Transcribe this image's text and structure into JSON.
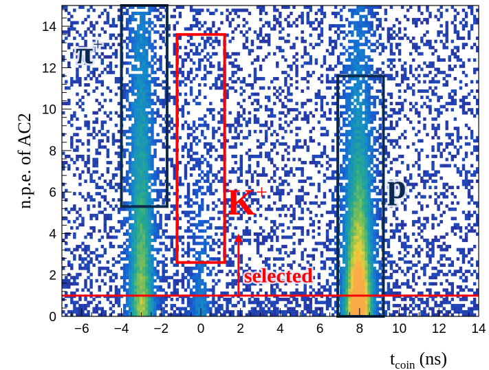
{
  "chart_data": {
    "type": "heatmap",
    "xlabel": {
      "main": "t",
      "sub": "coin",
      "unit": "(ns)"
    },
    "ylabel": "n.p.e. of AC2",
    "xlim": [
      -7,
      14
    ],
    "ylim": [
      0,
      15
    ],
    "xticks": [
      -6,
      -4,
      -2,
      0,
      2,
      4,
      6,
      8,
      10,
      12,
      14
    ],
    "xtick_labels": [
      "−6",
      "−4",
      "−2",
      "0",
      "2",
      "4",
      "6",
      "8",
      "10",
      "12",
      "14"
    ],
    "yticks": [
      0,
      2,
      4,
      6,
      8,
      10,
      12,
      14
    ],
    "ytick_labels": [
      "0",
      "2",
      "4",
      "6",
      "8",
      "10",
      "12",
      "14"
    ],
    "grid": false,
    "legend": "none",
    "colormap": "viridis-like (blue to yellow)",
    "peaks": [
      {
        "center_x": -3.0,
        "width_x": 0.45,
        "intensity": 1.0,
        "y_decay": 0.07
      },
      {
        "center_x": 0.0,
        "width_x": 0.35,
        "intensity": 0.38,
        "y_decay": 0.2
      },
      {
        "center_x": 7.95,
        "width_x": 0.5,
        "intensity": 1.6,
        "y_decay": 0.13
      }
    ],
    "cut_lines": [
      {
        "name": "selected",
        "y": 1.0,
        "color": "#ff0000"
      }
    ],
    "regions": [
      {
        "label": "π",
        "sup": "+",
        "x0": -4.0,
        "x1": -1.7,
        "y0": 5.3,
        "y1": 15.0,
        "color": "#0a2a50"
      },
      {
        "label": "K",
        "sup": "+",
        "x0": -1.2,
        "x1": 1.2,
        "y0": 2.6,
        "y1": 13.6,
        "color": "#ff0000"
      },
      {
        "label": "p",
        "sup": "",
        "x0": 6.9,
        "x1": 9.2,
        "y0": 0.0,
        "y1": 11.6,
        "color": "#0a2a50"
      }
    ],
    "annotations": [
      {
        "text": "selected",
        "color": "#ff0000",
        "arrow_x": 1.9,
        "arrow_from_y": 1.0,
        "arrow_to_y": 4.0
      }
    ]
  }
}
